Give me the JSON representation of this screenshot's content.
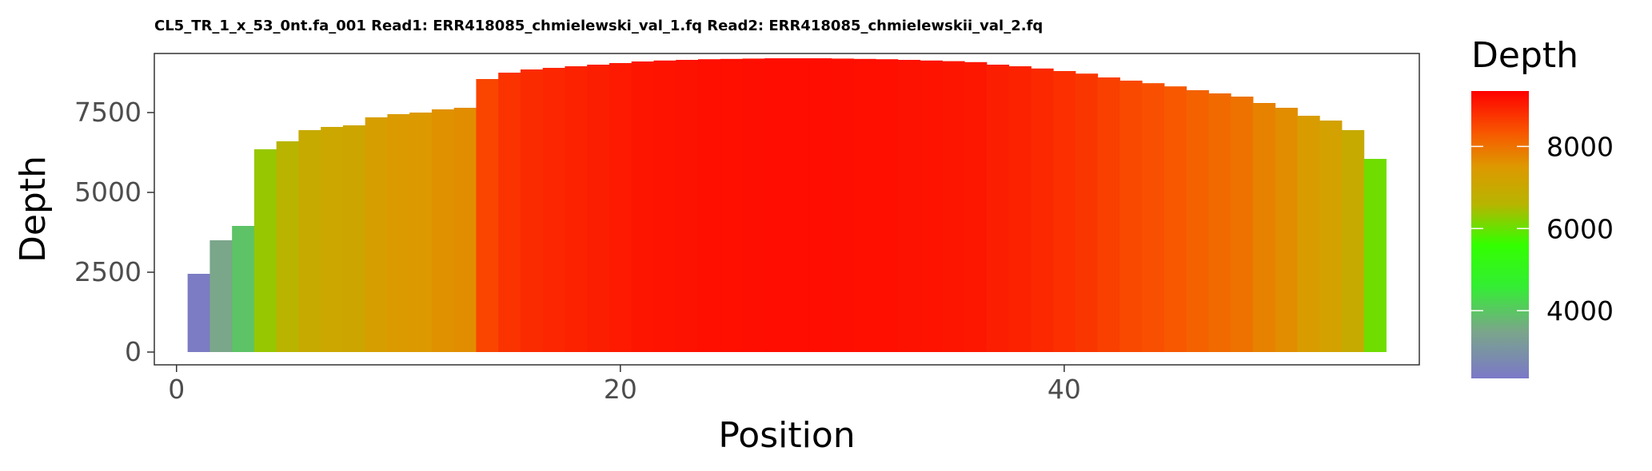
{
  "chart_data": {
    "type": "bar",
    "title": "CL5_TR_1_x_53_0nt.fa_001 Read1: ERR418085_chmielewski_val_1.fq Read2: ERR418085_chmielewskii_val_2.fq",
    "xlabel": "Position",
    "ylabel": "Depth",
    "xlim": [
      -1,
      56
    ],
    "ylim": [
      -400,
      9350
    ],
    "xticks": [
      0,
      20,
      40
    ],
    "yticks": [
      0,
      2500,
      5000,
      7500
    ],
    "grid": false,
    "legend": {
      "title": "Depth",
      "position": "right",
      "range": [
        2350,
        9350
      ],
      "ticks": [
        4000,
        6000,
        8000
      ],
      "color_stops": [
        {
          "value": 2350,
          "color": "#7b78c8"
        },
        {
          "value": 3500,
          "color": "#7aa68a"
        },
        {
          "value": 4600,
          "color": "#33ee33"
        },
        {
          "value": 5600,
          "color": "#33ff00"
        },
        {
          "value": 6600,
          "color": "#b8b400"
        },
        {
          "value": 7500,
          "color": "#dd9900"
        },
        {
          "value": 8300,
          "color": "#f75a00"
        },
        {
          "value": 9350,
          "color": "#ff0000"
        }
      ]
    },
    "x": [
      1,
      2,
      3,
      4,
      5,
      6,
      7,
      8,
      9,
      10,
      11,
      12,
      13,
      14,
      15,
      16,
      17,
      18,
      19,
      20,
      21,
      22,
      23,
      24,
      25,
      26,
      27,
      28,
      29,
      30,
      31,
      32,
      33,
      34,
      35,
      36,
      37,
      38,
      39,
      40,
      41,
      42,
      43,
      44,
      45,
      46,
      47,
      48,
      49,
      50,
      51,
      52,
      53,
      54
    ],
    "values": [
      2450,
      3500,
      3950,
      6350,
      6600,
      6950,
      7050,
      7100,
      7350,
      7450,
      7500,
      7600,
      7650,
      8550,
      8750,
      8850,
      8900,
      8950,
      9000,
      9050,
      9100,
      9130,
      9150,
      9170,
      9180,
      9190,
      9200,
      9200,
      9200,
      9190,
      9180,
      9170,
      9150,
      9130,
      9110,
      9080,
      9000,
      8950,
      8880,
      8800,
      8720,
      8600,
      8500,
      8420,
      8320,
      8200,
      8100,
      8000,
      7800,
      7650,
      7400,
      7250,
      6950,
      6050
    ]
  }
}
